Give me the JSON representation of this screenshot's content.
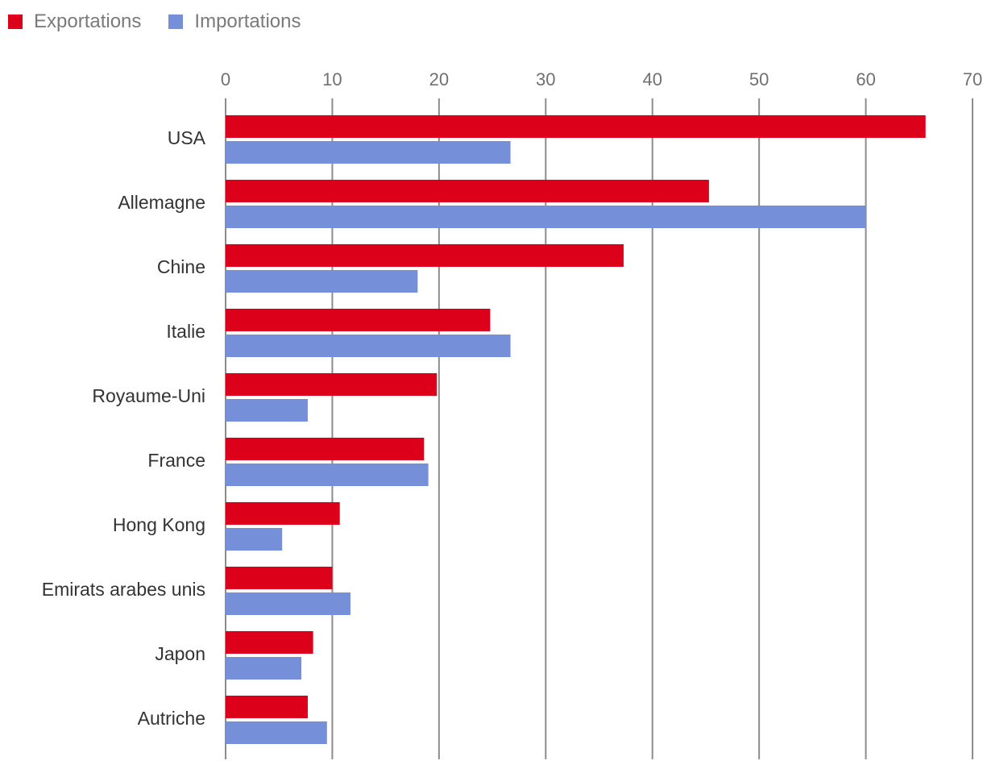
{
  "chart_data": {
    "type": "bar",
    "orientation": "horizontal",
    "title": "",
    "xlabel": "",
    "ylabel": "",
    "xlim": [
      0,
      70
    ],
    "ticks": [
      0,
      10,
      20,
      30,
      40,
      50,
      60,
      70
    ],
    "grid": true,
    "legend_position": "top-left",
    "categories": [
      "USA",
      "Allemagne",
      "Chine",
      "Italie",
      "Royaume-Uni",
      "France",
      "Hong Kong",
      "Emirats arabes unis",
      "Japon",
      "Autriche"
    ],
    "series": [
      {
        "name": "Exportations",
        "color": "#dc001a",
        "values": [
          65.6,
          45.3,
          37.3,
          24.8,
          19.8,
          18.6,
          10.7,
          10.0,
          8.2,
          7.7
        ]
      },
      {
        "name": "Importations",
        "color": "#7590d8",
        "values": [
          26.7,
          60.0,
          18.0,
          26.7,
          7.7,
          19.0,
          5.3,
          11.7,
          7.1,
          9.5
        ]
      }
    ]
  }
}
